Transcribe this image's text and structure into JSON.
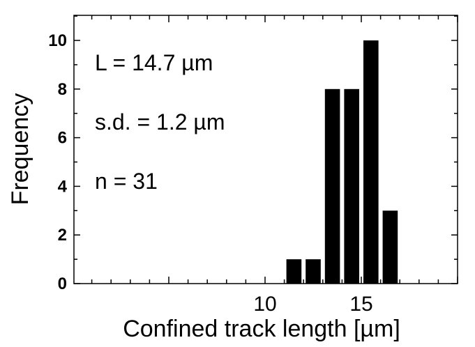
{
  "chart_data": {
    "type": "bar",
    "x": [
      11.5,
      12.5,
      13.5,
      14.5,
      15.5,
      16.5
    ],
    "values": [
      1,
      1,
      8,
      8,
      10,
      3
    ],
    "bin_width": 1,
    "xlabel": "Confined track length [µm]",
    "ylabel": "Frequency",
    "xlim": [
      1,
      20
    ],
    "ylim": [
      0,
      11
    ],
    "x_ticks": [
      10,
      15
    ],
    "y_ticks": [
      0,
      2,
      4,
      6,
      8,
      10
    ],
    "grid": false,
    "annotations": [
      "L = 14.7 µm",
      "s.d. = 1.2 µm",
      "n = 31"
    ],
    "bar_color": "#000000"
  }
}
